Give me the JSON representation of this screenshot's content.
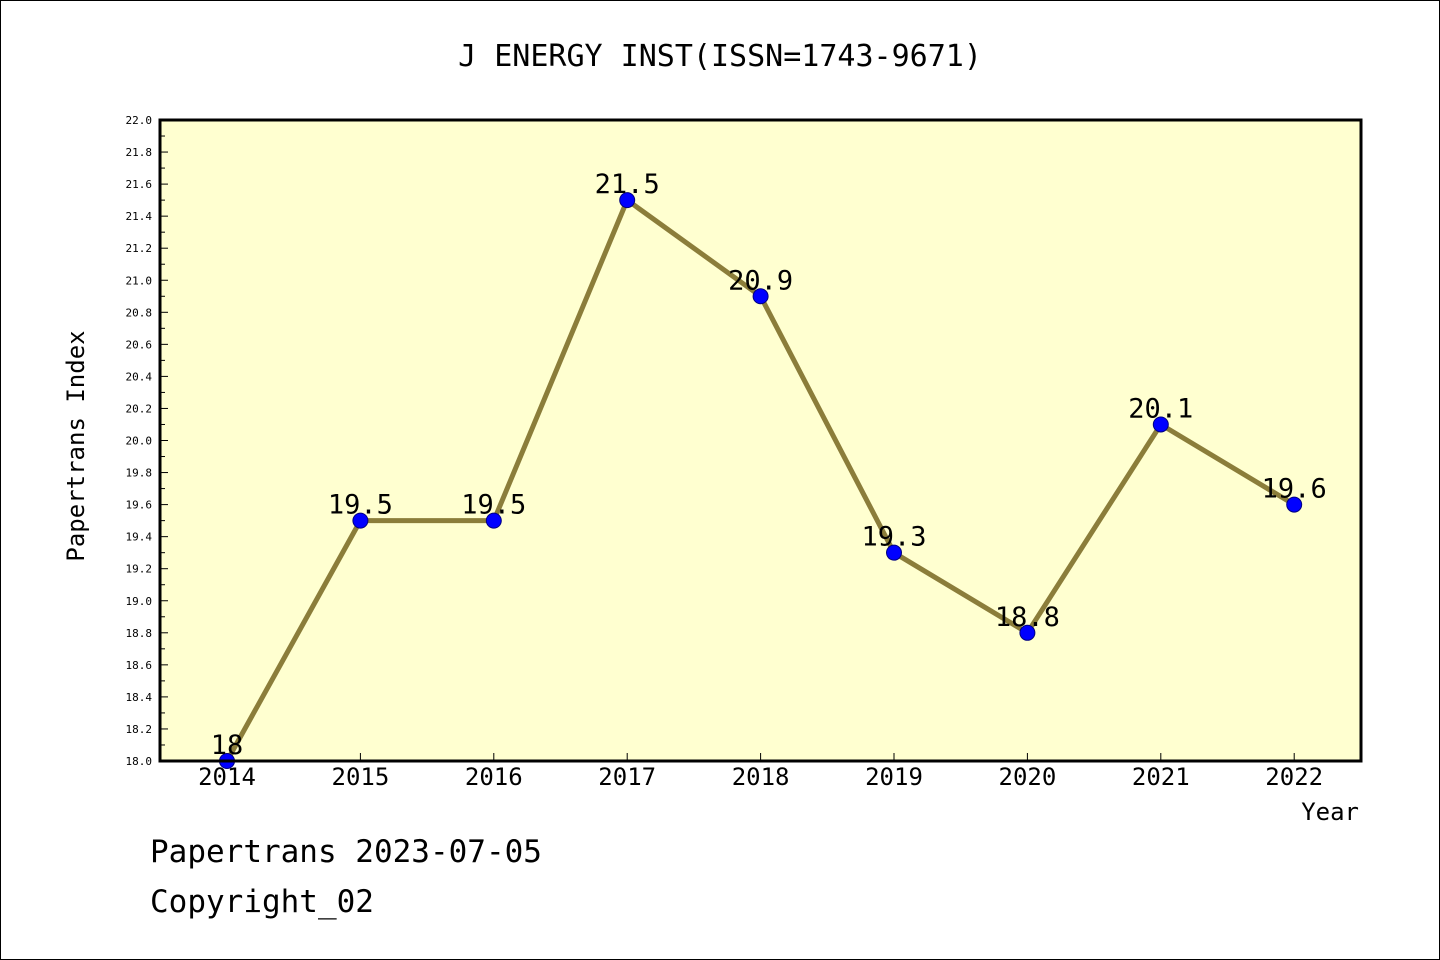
{
  "chart_data": {
    "type": "line",
    "title": "J ENERGY INST(ISSN=1743-9671)",
    "xlabel": "Year",
    "ylabel": "Papertrans Index",
    "x": [
      "2014",
      "2015",
      "2016",
      "2017",
      "2018",
      "2019",
      "2020",
      "2021",
      "2022"
    ],
    "series": [
      {
        "values": [
          18.0,
          19.5,
          19.5,
          21.5,
          20.9,
          19.3,
          18.8,
          20.1,
          19.6
        ],
        "data_labels": [
          "18",
          "19.5",
          "19.5",
          "21.5",
          "20.9",
          "19.3",
          "18.8",
          "20.1",
          "19.6"
        ]
      }
    ],
    "ylim": [
      18.0,
      22.0
    ],
    "y_ticks": [
      "18.0",
      "18.2",
      "18.4",
      "18.6",
      "18.8",
      "19.0",
      "19.2",
      "19.4",
      "19.6",
      "19.8",
      "20.0",
      "20.2",
      "20.4",
      "20.6",
      "20.8",
      "21.0",
      "21.2",
      "21.4",
      "21.6",
      "21.8",
      "22.0"
    ],
    "grid": false,
    "legend": "none",
    "colors": {
      "plot_background": "#ffffd0",
      "line": "#8b7d3a",
      "marker_fill": "#0000ff",
      "marker_edge": "#000080",
      "axes": "#000000"
    }
  },
  "footer": {
    "line1": "Papertrans 2023-07-05",
    "line2": "Copyright_02"
  }
}
